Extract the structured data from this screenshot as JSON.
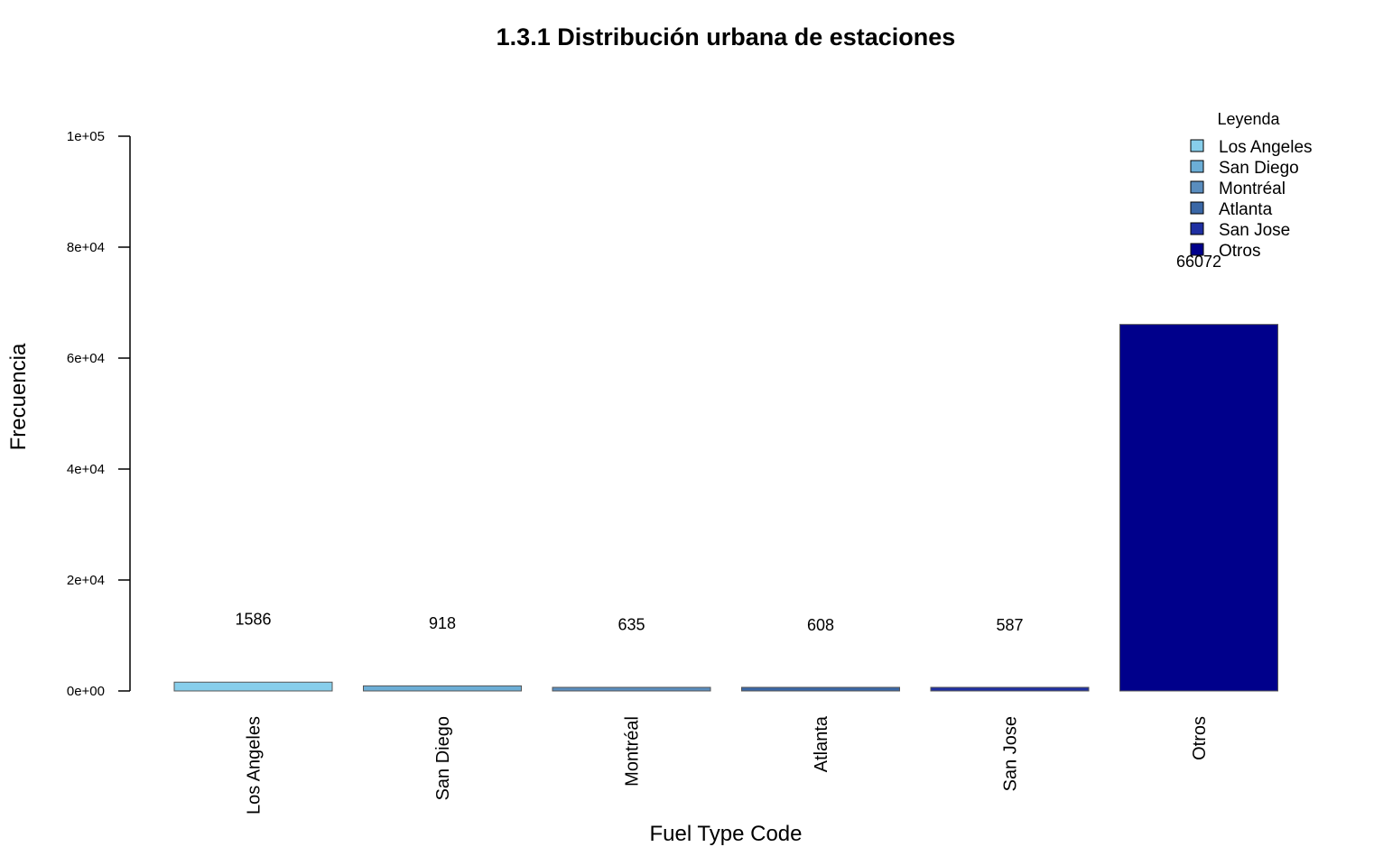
{
  "chart_data": {
    "type": "bar",
    "title": "1.3.1 Distribución urbana de estaciones",
    "xlabel": "Fuel Type Code",
    "ylabel": "Frecuencia",
    "categories": [
      "Los Angeles",
      "San Diego",
      "Montréal",
      "Atlanta",
      "San Jose",
      "Otros"
    ],
    "values": [
      1586,
      918,
      635,
      608,
      587,
      66072
    ],
    "value_labels": [
      "1586",
      "918",
      "635",
      "608",
      "587",
      "66072"
    ],
    "colors": [
      "#87CEEB",
      "#6CAED6",
      "#5A8DBE",
      "#3A67A6",
      "#1F2FA2",
      "#00008B"
    ],
    "ylim": [
      0,
      100000
    ],
    "yticks": [
      0,
      20000,
      40000,
      60000,
      80000,
      100000
    ],
    "ytick_labels": [
      "0e+00",
      "2e+04",
      "4e+04",
      "6e+04",
      "8e+04",
      "1e+05"
    ],
    "grid": false,
    "legend": {
      "title": "Leyenda",
      "placement": "top-right",
      "entries": [
        "Los Angeles",
        "San Diego",
        "Montréal",
        "Atlanta",
        "San Jose",
        "Otros"
      ]
    }
  }
}
